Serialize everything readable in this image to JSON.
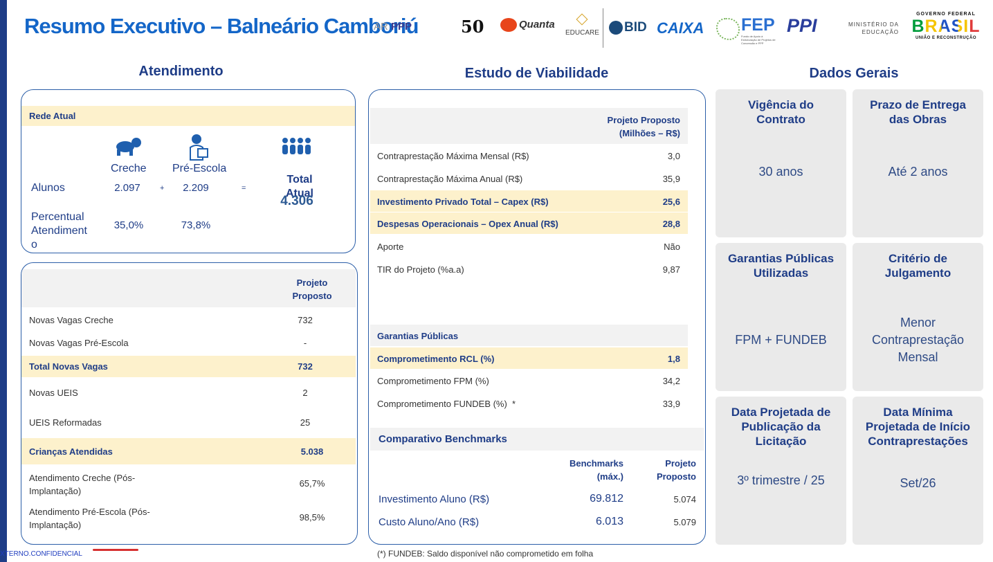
{
  "header": {
    "title": "Resumo Executivo – Balneário Camboriú",
    "logos": {
      "ppp_text": "PPP",
      "ppp_partial": "AR",
      "fifty": "50",
      "quanta": "Quanta",
      "educare": "EDUCARE",
      "bid": "BID",
      "caixa": "CAIXA",
      "fep": "FEP",
      "fep_sub": "Fundo de Apoio à Estruturação de Projetos de Concessão e PPP",
      "ppi": "PPI",
      "ministerio": "MINISTÉRIO DA EDUCAÇÃO",
      "governo": "GOVERNO FEDERAL",
      "brasil": "BRASIL",
      "uniao": "UNIÃO E RECONSTRUÇÃO"
    }
  },
  "atendimento": {
    "title": "Atendimento",
    "rede_atual": {
      "label": "Rede Atual",
      "col_creche": "Creche",
      "col_pre": "Pré-Escola",
      "col_total": "Total Atual",
      "alunos_label": "Alunos",
      "alunos_creche": "2.097",
      "plus": "+",
      "alunos_pre": "2.209",
      "equals": "=",
      "alunos_total": "4.306",
      "perc_label": "Percentual Atendiment o",
      "perc_creche": "35,0%",
      "perc_pre": "73,8%"
    },
    "projeto": {
      "header": "Projeto Proposto",
      "rows": [
        {
          "label": "Novas Vagas Creche",
          "value": "732"
        },
        {
          "label": "Novas Vagas Pré-Escola",
          "value": "-"
        },
        {
          "label": "Total Novas Vagas",
          "value": "732"
        },
        {
          "label": "Novas UEIS",
          "value": "2"
        },
        {
          "label": "UEIS Reformadas",
          "value": "25"
        },
        {
          "label": "Crianças Atendidas",
          "value": "5.038"
        },
        {
          "label": "Atendimento Creche (Pós-Implantação)",
          "value": "65,7%"
        },
        {
          "label": "Atendimento Pré-Escola (Pós-Implantação)",
          "value": "98,5%"
        }
      ]
    }
  },
  "viabilidade": {
    "title": "Estudo de Viabilidade",
    "header": "Projeto Proposto (Milhões – R$)",
    "rows": [
      {
        "label": "Contraprestação Máxima Mensal (R$)",
        "value": "3,0"
      },
      {
        "label": "Contraprestação Máxima Anual (R$)",
        "value": "35,9"
      },
      {
        "label": "Investimento Privado Total – Capex (R$)",
        "value": "25,6"
      },
      {
        "label": "Despesas Operacionais – Opex Anual (R$)",
        "value": "28,8"
      },
      {
        "label": "Aporte",
        "value": "Não"
      },
      {
        "label": "TIR do Projeto (%a.a)",
        "value": "9,87"
      }
    ],
    "garantias_header": "Garantias Públicas",
    "garantias": [
      {
        "label": "Comprometimento RCL (%)",
        "value": "1,8"
      },
      {
        "label": "Comprometimento FPM (%)",
        "value": "34,2"
      },
      {
        "label": "Comprometimento FUNDEB (%)  *",
        "value": "33,9"
      }
    ],
    "benchmarks": {
      "title": "Comparativo Benchmarks",
      "col_bench": "Benchmarks (máx.)",
      "col_proj": "Projeto Proposto",
      "rows": [
        {
          "label": "Investimento Aluno (R$)",
          "bench": "69.812",
          "proj": "5.074"
        },
        {
          "label": "Custo Aluno/Ano (R$)",
          "bench": "6.013",
          "proj": "5.079"
        }
      ]
    },
    "footnote": "(*) FUNDEB: Saldo disponível não comprometido em folha"
  },
  "dados_gerais": {
    "title": "Dados Gerais",
    "boxes": [
      {
        "title": "Vigência do Contrato",
        "value": "30 anos"
      },
      {
        "title": "Prazo de Entrega das Obras",
        "value": "Até 2 anos"
      },
      {
        "title": "Garantias Públicas Utilizadas",
        "value": "FPM + FUNDEB"
      },
      {
        "title": "Critério de Julgamento",
        "value": "Menor Contraprestação Mensal"
      },
      {
        "title": "Data Projetada de Publicação da Licitação",
        "value": "3º trimestre / 25"
      },
      {
        "title": "Data Mínima Projetada de Início Contraprestações",
        "value": "Set/26"
      }
    ]
  },
  "footer": {
    "classification": "XTERNO.CONFIDENCIAL"
  },
  "colors": {
    "title_blue": "#1466c8",
    "navy": "#1f3d87",
    "highlight": "#fdf1cc",
    "box_gray": "#eaeaea",
    "panel_border": "#2b5ea8"
  }
}
